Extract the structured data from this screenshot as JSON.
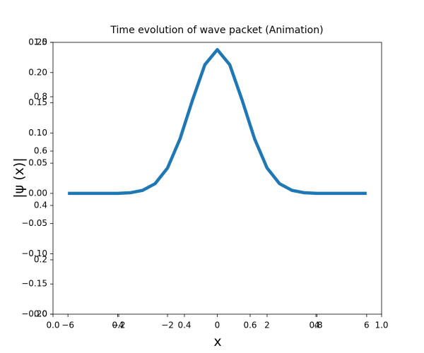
{
  "chart_data": [
    {
      "type": "axes",
      "xlim": [
        0,
        1
      ],
      "xticks": [
        {
          "value": 0,
          "label": "0.0"
        },
        0.2,
        0.4,
        0.6,
        0.8,
        {
          "value": 1,
          "label": "1.0"
        }
      ],
      "ylim": [
        0,
        1
      ],
      "yticks": [
        {
          "value": 0,
          "label": "0.0"
        },
        0.2,
        0.4,
        0.6,
        0.8,
        {
          "value": 1,
          "label": "1.0"
        }
      ]
    },
    {
      "type": "line",
      "title": "Time evolution of wave packet (Animation)",
      "x_label": "x",
      "y_label": "|ψ (x)|",
      "x": [
        -6,
        -5.5,
        -5,
        -4.5,
        -4,
        -3.5,
        -3,
        -2.5,
        -2,
        -1.5,
        -1,
        -0.5,
        0,
        0.5,
        1,
        1.5,
        2,
        2.5,
        3,
        3.5,
        4,
        4.5,
        5,
        5.5,
        6
      ],
      "series": [
        {
          "color": "#1f77b4",
          "values": [
            0,
            0,
            0,
            0,
            0,
            0.001,
            0.005,
            0.016,
            0.042,
            0.09,
            0.154,
            0.213,
            0.238,
            0.213,
            0.154,
            0.09,
            0.042,
            0.016,
            0.005,
            0.001,
            0,
            0,
            0,
            0,
            0
          ]
        }
      ],
      "xlim": [
        -6.6,
        6.6
      ],
      "xticks": [
        {
          "value": -6,
          "label": "−6"
        },
        {
          "value": -4,
          "label": "−4"
        },
        {
          "value": -2,
          "label": "−2"
        },
        0,
        2,
        4,
        6
      ],
      "ylim": [
        -0.2,
        0.25
      ],
      "yticks": [
        {
          "value": -0.2,
          "label": "−0.20"
        },
        {
          "value": -0.15,
          "label": "−0.15"
        },
        {
          "value": -0.1,
          "label": "−0.10"
        },
        {
          "value": -0.05,
          "label": "−0.05"
        },
        {
          "value": 0,
          "label": "0.00"
        },
        {
          "value": 0.05,
          "label": "0.05"
        },
        {
          "value": 0.1,
          "label": "0.10"
        },
        {
          "value": 0.15,
          "label": "0.15"
        },
        {
          "value": 0.2,
          "label": "0.20"
        },
        {
          "value": 0.25,
          "label": "0.25"
        }
      ]
    }
  ]
}
